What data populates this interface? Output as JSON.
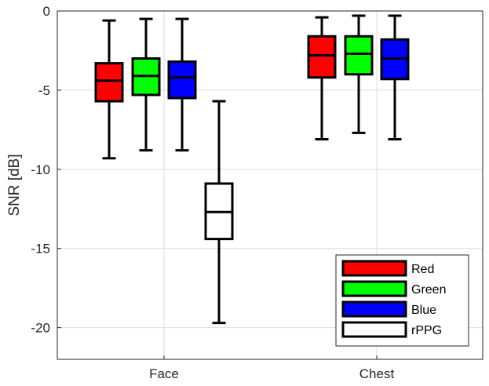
{
  "chart_data": {
    "type": "box",
    "ylabel": "SNR [dB]",
    "xlabel": "",
    "ylim": [
      -22,
      0
    ],
    "yticks": [
      0,
      -5,
      -10,
      -15,
      -20
    ],
    "ytick_labels": [
      "0",
      "-5",
      "-10",
      "-15",
      "-20"
    ],
    "grid": true,
    "legend_position": "bottom-right",
    "categories": [
      "Face",
      "Chest"
    ],
    "series": [
      {
        "name": "Red",
        "color": "#ff0000",
        "boxes": [
          {
            "category": "Face",
            "min": -9.3,
            "q1": -5.7,
            "median": -4.4,
            "q3": -3.3,
            "max": -0.6
          },
          {
            "category": "Chest",
            "min": -8.1,
            "q1": -4.2,
            "median": -2.8,
            "q3": -1.6,
            "max": -0.4
          }
        ]
      },
      {
        "name": "Green",
        "color": "#00ff00",
        "boxes": [
          {
            "category": "Face",
            "min": -8.8,
            "q1": -5.3,
            "median": -4.1,
            "q3": -3.0,
            "max": -0.5
          },
          {
            "category": "Chest",
            "min": -7.7,
            "q1": -4.0,
            "median": -2.7,
            "q3": -1.6,
            "max": -0.3
          }
        ]
      },
      {
        "name": "Blue",
        "color": "#0000ff",
        "boxes": [
          {
            "category": "Face",
            "min": -8.8,
            "q1": -5.5,
            "median": -4.2,
            "q3": -3.2,
            "max": -0.5
          },
          {
            "category": "Chest",
            "min": -8.1,
            "q1": -4.3,
            "median": -3.0,
            "q3": -1.8,
            "max": -0.3
          }
        ]
      },
      {
        "name": "rPPG",
        "color": "#ffffff",
        "boxes": [
          {
            "category": "Face",
            "min": -19.7,
            "q1": -14.4,
            "median": -12.7,
            "q3": -10.9,
            "max": -5.7
          }
        ]
      }
    ]
  }
}
